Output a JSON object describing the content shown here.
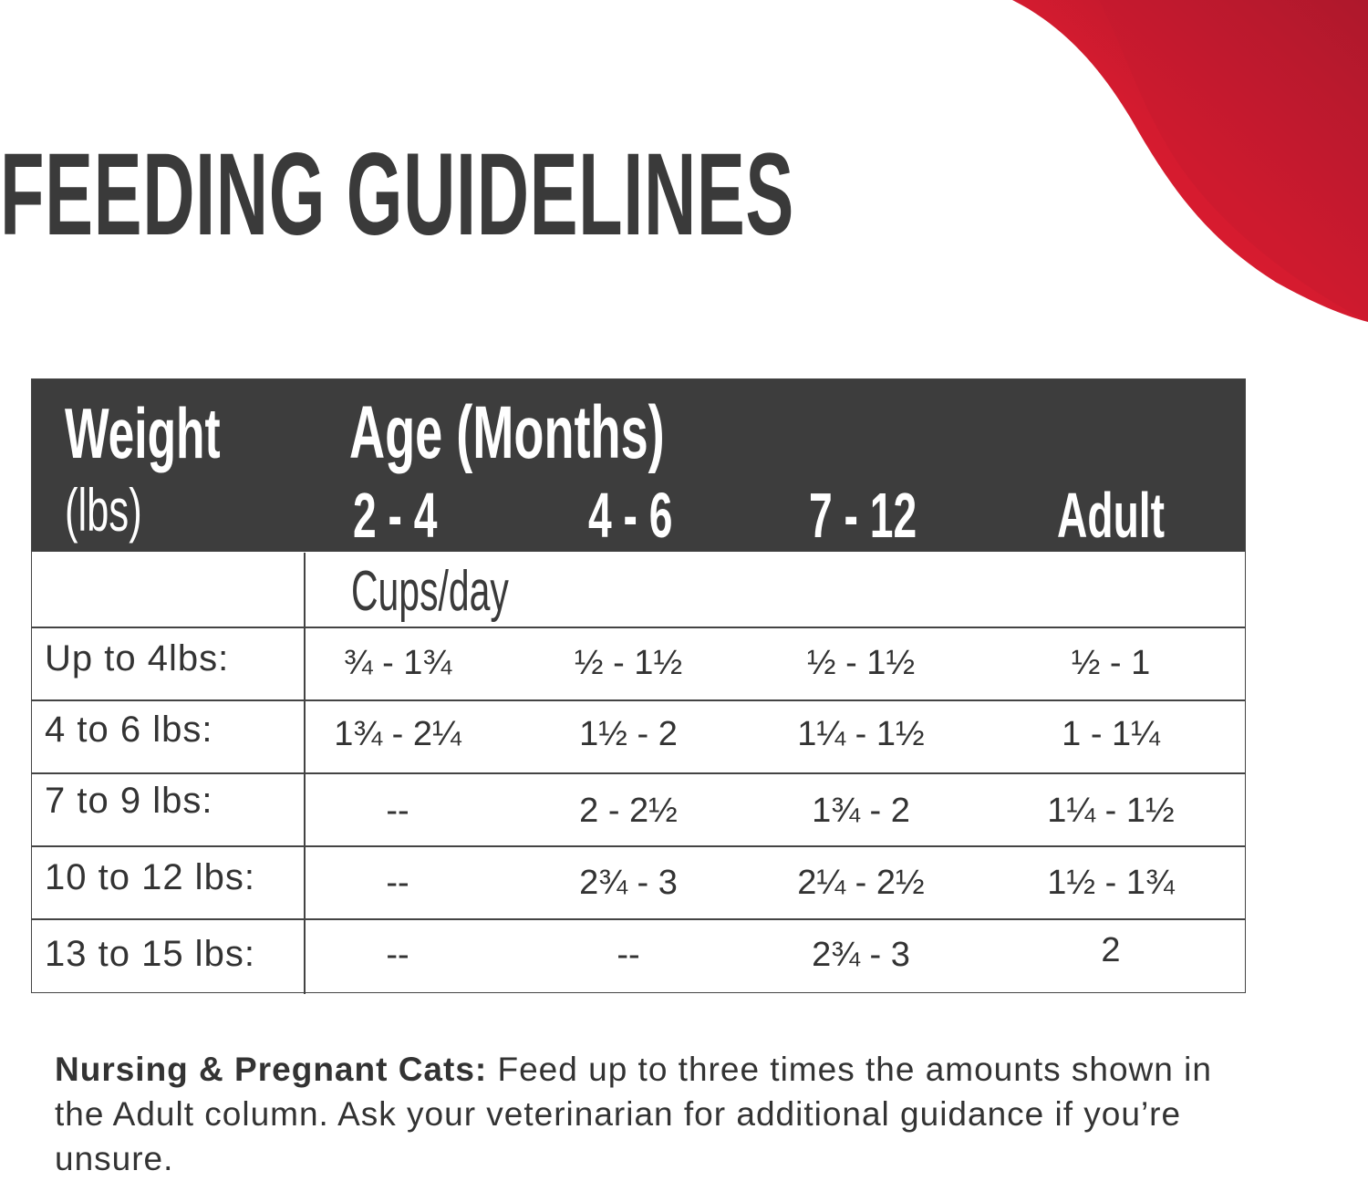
{
  "title": "FEEDING GUIDELINES",
  "colors": {
    "header_bg": "#3d3d3d",
    "accent_red": "#e31b2d",
    "text": "#333333"
  },
  "table": {
    "weight_header": "Weight",
    "weight_unit": "(lbs)",
    "age_header": "Age (Months)",
    "age_columns": [
      "2 - 4",
      "4 - 6",
      "7 - 12",
      "Adult"
    ],
    "unit_label": "Cups/day",
    "rows": [
      {
        "weight": "Up to 4lbs:",
        "values": [
          "¾ - 1¾",
          "½ - 1½",
          "½ - 1½",
          "½ - 1"
        ]
      },
      {
        "weight": "4 to 6 lbs:",
        "values": [
          "1¾ - 2¼",
          "1½ - 2",
          "1¼ - 1½",
          "1 - 1¼"
        ]
      },
      {
        "weight": "7 to 9 lbs:",
        "values": [
          "--",
          "2 - 2½",
          "1¾ - 2",
          "1¼ - 1½"
        ]
      },
      {
        "weight": "10 to 12 lbs:",
        "values": [
          "--",
          "2¾ - 3",
          "2¼ - 2½",
          "1½ - 1¾"
        ]
      },
      {
        "weight": "13 to 15 lbs:",
        "values": [
          "--",
          "--",
          "2¾ - 3",
          "2"
        ]
      }
    ]
  },
  "note": {
    "label": "Nursing & Pregnant Cats:",
    "text": " Feed up to three times the amounts shown in the Adult column. Ask your veterinarian for additional guidance if you’re unsure."
  }
}
